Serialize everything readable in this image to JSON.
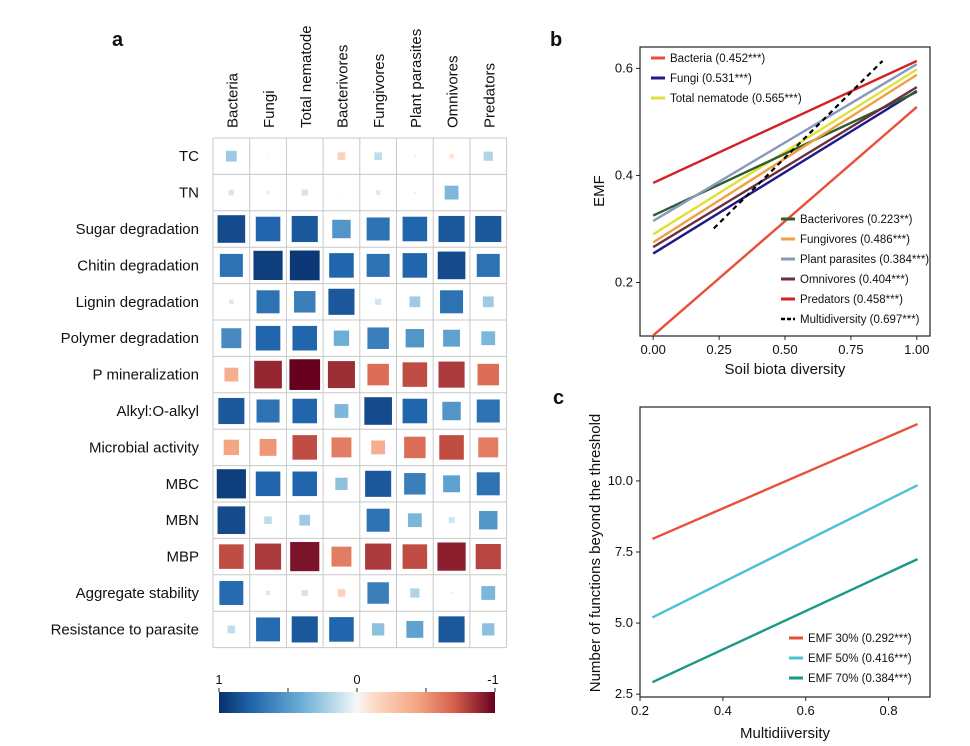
{
  "panels": {
    "a": "a",
    "b": "b",
    "c": "c"
  },
  "chart_data": [
    {
      "type": "heatmap",
      "panel": "a",
      "columns": [
        "Bacteria",
        "Fungi",
        "Total nematode",
        "Bacterivores",
        "Fungivores",
        "Plant parasites",
        "Omnivores",
        "Predators"
      ],
      "rows": [
        "TC",
        "TN",
        "Sugar degradation",
        "Chitin degradation",
        "Lignin degradation",
        "Polymer degradation",
        "P mineralization",
        "Alkyl:O-alkyl",
        "Microbial activity",
        "MBC",
        "MBN",
        "MBP",
        "Aggregate stability",
        "Resistance to parasite"
      ],
      "values": [
        [
          0.35,
          0.05,
          0.0,
          -0.25,
          0.25,
          -0.08,
          -0.15,
          0.3
        ],
        [
          0.18,
          0.1,
          0.2,
          -0.05,
          -0.15,
          -0.08,
          0.45,
          -0.05
        ],
        [
          0.9,
          0.8,
          0.85,
          0.6,
          0.75,
          0.8,
          0.85,
          0.85
        ],
        [
          0.75,
          0.95,
          0.97,
          0.8,
          0.75,
          0.8,
          0.9,
          0.75
        ],
        [
          0.15,
          0.75,
          0.7,
          0.85,
          0.2,
          0.35,
          0.75,
          0.35
        ],
        [
          0.65,
          0.8,
          0.8,
          0.5,
          0.7,
          0.6,
          0.55,
          0.45
        ],
        [
          -0.45,
          -0.9,
          -1.0,
          -0.88,
          -0.7,
          -0.8,
          -0.85,
          -0.7
        ],
        [
          0.85,
          0.75,
          0.8,
          0.45,
          0.9,
          0.8,
          0.6,
          0.75
        ],
        [
          -0.5,
          -0.55,
          -0.8,
          -0.65,
          -0.45,
          -0.7,
          -0.8,
          -0.65
        ],
        [
          0.95,
          0.8,
          0.8,
          0.4,
          0.85,
          0.7,
          0.55,
          0.75
        ],
        [
          0.9,
          0.25,
          0.35,
          -0.05,
          0.75,
          0.45,
          0.2,
          0.6
        ],
        [
          -0.8,
          -0.85,
          -0.95,
          -0.65,
          -0.85,
          -0.8,
          -0.92,
          -0.82
        ],
        [
          0.78,
          0.15,
          0.2,
          -0.25,
          0.7,
          0.3,
          0.08,
          0.45
        ],
        [
          0.25,
          0.78,
          0.85,
          0.8,
          0.4,
          0.55,
          0.85,
          0.4
        ]
      ],
      "colorbar": {
        "labels": [
          "1",
          "0",
          "-1"
        ],
        "range": [
          1,
          -1
        ]
      }
    },
    {
      "type": "line",
      "panel": "b",
      "xlabel": "Soil biota diversity",
      "ylabel": "EMF",
      "xlim": [
        -0.05,
        1.05
      ],
      "ylim": [
        0.1,
        0.64
      ],
      "xticks": [
        "0.00",
        "0.25",
        "0.50",
        "0.75",
        "1.00"
      ],
      "xtick_values": [
        0,
        0.25,
        0.5,
        0.75,
        1.0
      ],
      "yticks": [
        "0.2",
        "0.4",
        "0.6"
      ],
      "ytick_values": [
        0.2,
        0.4,
        0.6
      ],
      "series": [
        {
          "name": "Bacteria (0.452***)",
          "color": "#e8503a",
          "x": [
            0,
            1
          ],
          "y": [
            0.101,
            0.528
          ]
        },
        {
          "name": "Fungi (0.531***)",
          "color": "#1f1a8c",
          "x": [
            0,
            1
          ],
          "y": [
            0.254,
            0.558
          ]
        },
        {
          "name": "Total nematode (0.565***)",
          "color": "#e0e03a",
          "x": [
            0,
            1
          ],
          "y": [
            0.29,
            0.598
          ]
        },
        {
          "name": "Bacterivores (0.223**)",
          "color": "#2e5e2e",
          "x": [
            0,
            1
          ],
          "y": [
            0.325,
            0.556
          ]
        },
        {
          "name": "Fungivores (0.486***)",
          "color": "#f0a040",
          "x": [
            0,
            1
          ],
          "y": [
            0.275,
            0.588
          ]
        },
        {
          "name": "Plant parasites (0.384***)",
          "color": "#8899bb",
          "x": [
            0,
            1
          ],
          "y": [
            0.315,
            0.608
          ]
        },
        {
          "name": "Omnivores (0.404***)",
          "color": "#6b2f3f",
          "x": [
            0,
            1
          ],
          "y": [
            0.266,
            0.565
          ]
        },
        {
          "name": "Predators (0.458***)",
          "color": "#d42020",
          "x": [
            0,
            1
          ],
          "y": [
            0.386,
            0.614
          ]
        },
        {
          "name": "Multidiversity (0.697***)",
          "color": "#000000",
          "dashed": true,
          "x": [
            0.23,
            0.87
          ],
          "y": [
            0.301,
            0.614
          ]
        }
      ]
    },
    {
      "type": "line",
      "panel": "c",
      "xlabel": "Multidiiversity",
      "ylabel": "Number of functions beyond the threshold",
      "xlim": [
        0.2,
        0.9
      ],
      "ylim": [
        2.4,
        12.6
      ],
      "xticks": [
        "0.2",
        "0.4",
        "0.6",
        "0.8"
      ],
      "xtick_values": [
        0.2,
        0.4,
        0.6,
        0.8
      ],
      "yticks": [
        "2.5",
        "5.0",
        "7.5",
        "10.0"
      ],
      "ytick_values": [
        2.5,
        5.0,
        7.5,
        10.0
      ],
      "series": [
        {
          "name": "EMF 30% (0.292***)",
          "color": "#e8503a",
          "x": [
            0.23,
            0.87
          ],
          "y": [
            7.96,
            12.0
          ]
        },
        {
          "name": "EMF 50% (0.416***)",
          "color": "#4fbfd8",
          "x": [
            0.23,
            0.87
          ],
          "y": [
            5.2,
            9.85
          ]
        },
        {
          "name": "EMF 70% (0.384***)",
          "color": "#1a9a86",
          "x": [
            0.23,
            0.87
          ],
          "y": [
            2.92,
            7.25
          ]
        }
      ]
    }
  ]
}
